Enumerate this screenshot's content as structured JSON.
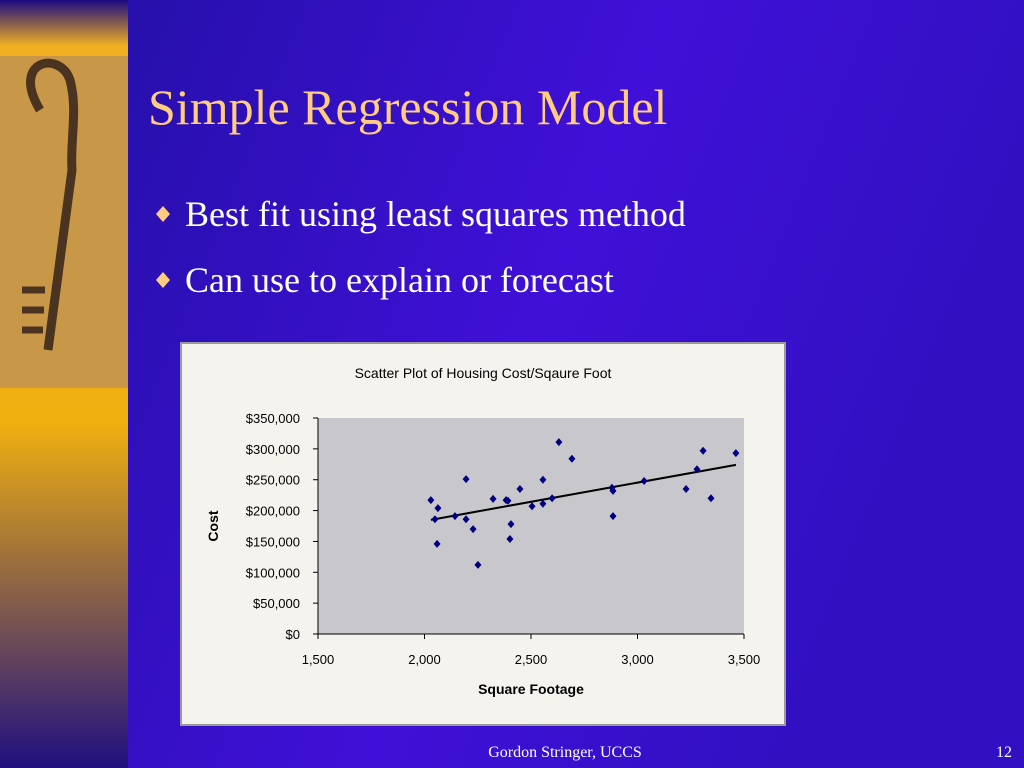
{
  "slide": {
    "title": "Simple Regression Model",
    "bullets": [
      "Best fit using least squares method",
      "Can use to explain or forecast"
    ],
    "footer": "Gordon Stringer, UCCS",
    "page_number": "12"
  },
  "chart_data": {
    "type": "scatter",
    "title": "Scatter Plot of Housing Cost/Sqaure Foot",
    "x_label": "Square Footage",
    "y_label": "Cost",
    "xlim": [
      1500,
      3500
    ],
    "xticks": [
      {
        "value": 1500,
        "label": "1,500"
      },
      {
        "value": 2000,
        "label": "2,000"
      },
      {
        "value": 2500,
        "label": "2,500"
      },
      {
        "value": 3000,
        "label": "3,000"
      },
      {
        "value": 3500,
        "label": "3,500"
      }
    ],
    "ylim": [
      0,
      350000
    ],
    "yticks": [
      {
        "value": 0,
        "label": "$0"
      },
      {
        "value": 50000,
        "label": "$50,000"
      },
      {
        "value": 100000,
        "label": "$100,000"
      },
      {
        "value": 150000,
        "label": "$150,000"
      },
      {
        "value": 200000,
        "label": "$200,000"
      },
      {
        "value": 250000,
        "label": "$250,000"
      },
      {
        "value": 300000,
        "label": "$300,000"
      },
      {
        "value": 350000,
        "label": "$350,000"
      }
    ],
    "color": "#000080",
    "x": [
      2030,
      2049,
      2063,
      2059,
      2143,
      2195,
      2195,
      2228,
      2251,
      2322,
      2383,
      2392,
      2406,
      2401,
      2448,
      2505,
      2556,
      2556,
      2599,
      2631,
      2692,
      2880,
      2885,
      2885,
      3031,
      3228,
      3279,
      3308,
      3345,
      3462
    ],
    "values": [
      217000,
      186000,
      204000,
      146000,
      191000,
      251000,
      186000,
      170000,
      112000,
      219000,
      217000,
      216000,
      178000,
      154000,
      235000,
      207000,
      211000,
      250000,
      220000,
      311000,
      284000,
      237000,
      232000,
      191000,
      248000,
      235000,
      267000,
      297000,
      220000,
      293000
    ],
    "trendline": {
      "color": "#000000",
      "x": [
        2030,
        3462
      ],
      "values": [
        185000,
        274000
      ]
    }
  }
}
